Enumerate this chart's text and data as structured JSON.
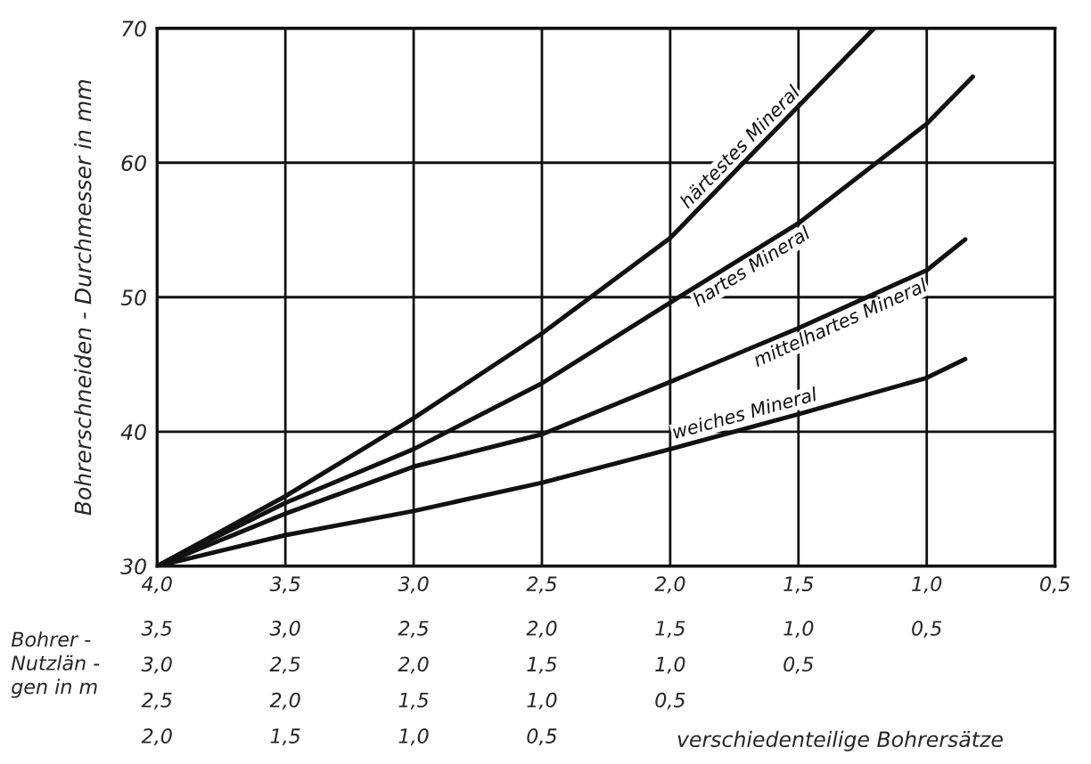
{
  "chart_data": {
    "type": "line",
    "ylabel": "Bohrerschneiden - Durchmesser in mm",
    "xlabel": "Bohrer -\nNutzlän -\ngen in m",
    "annotations": [
      "verschiedenteilige Bohrersätze",
      "3,5",
      "3,0",
      "2,5",
      "2,0",
      "1,5",
      "1,0",
      "0,5",
      "3,0",
      "2,5",
      "2,0",
      "1,5",
      "1,0",
      "0,5",
      "2,5",
      "2,0",
      "1,5",
      "1,0",
      "0,5",
      "2,0",
      "1,5",
      "1,0",
      "0,5"
    ],
    "series": [
      {
        "name": "härtestes Mineral",
        "color": "#111111",
        "x": [
          4.0,
          3.5,
          3.0,
          2.5,
          2.0,
          1.5,
          1.205
        ],
        "values": [
          30,
          35.2,
          41.0,
          47.3,
          54.4,
          64.2,
          70
        ]
      },
      {
        "name": "hartes Mineral",
        "color": "#111111",
        "x": [
          4.0,
          3.5,
          3.0,
          2.5,
          2.0,
          1.5,
          1.0,
          0.82
        ],
        "values": [
          30,
          34.7,
          38.7,
          43.6,
          49.6,
          55.5,
          62.9,
          66.4
        ]
      },
      {
        "name": "mittelhartes Mineral",
        "color": "#111111",
        "x": [
          4.0,
          3.5,
          3.0,
          2.5,
          2.0,
          1.5,
          1.0,
          0.85
        ],
        "values": [
          30,
          33.9,
          37.4,
          39.8,
          43.7,
          47.7,
          52.0,
          54.3
        ]
      },
      {
        "name": "weiches Mineral",
        "color": "#111111",
        "x": [
          4.0,
          3.5,
          3.0,
          2.5,
          2.0,
          1.5,
          1.0,
          0.85
        ],
        "values": [
          30,
          32.3,
          34.1,
          36.2,
          38.7,
          41.3,
          44.0,
          45.4
        ]
      }
    ],
    "xlim": [
      4.0,
      0.5
    ],
    "xticks": [
      {
        "value": 4.0,
        "label": "4,0"
      },
      {
        "value": 3.5,
        "label": "3,5"
      },
      {
        "value": 3.0,
        "label": "3,0"
      },
      {
        "value": 2.5,
        "label": "2,5"
      },
      {
        "value": 2.0,
        "label": "2,0"
      },
      {
        "value": 1.5,
        "label": "1,5"
      },
      {
        "value": 1.0,
        "label": "1,0"
      },
      {
        "value": 0.5,
        "label": "0,5"
      }
    ],
    "ylim": [
      30,
      70
    ],
    "yticks": [
      30,
      40,
      50,
      60,
      70
    ],
    "grid": true
  }
}
